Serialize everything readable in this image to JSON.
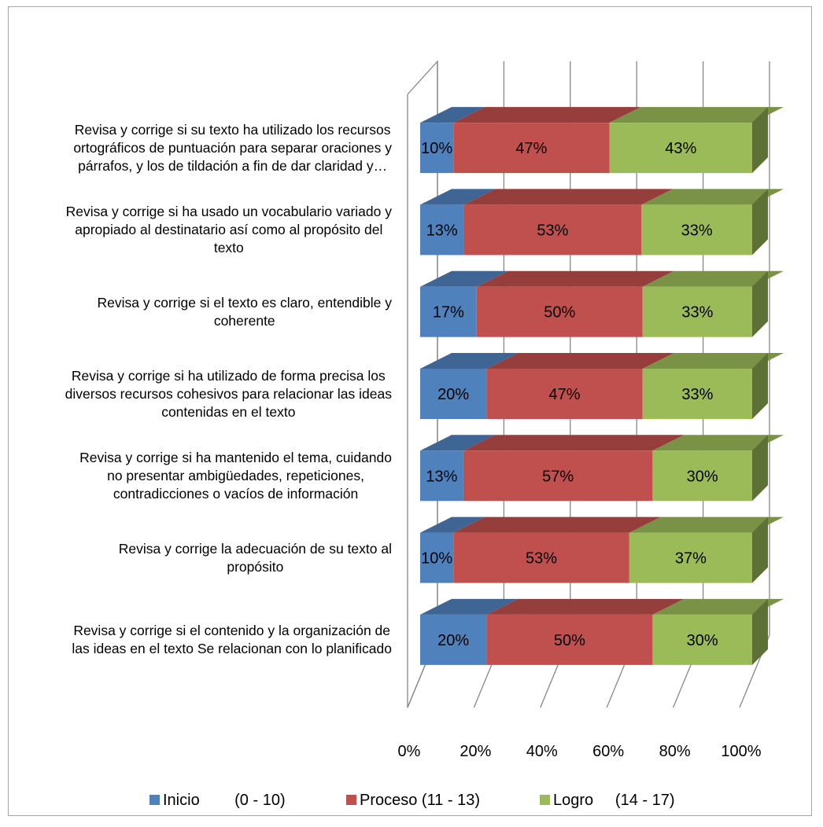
{
  "chart_data": {
    "type": "bar",
    "orientation": "horizontal",
    "stacked": "100%",
    "three_d": true,
    "categories": [
      "Revisa y corrige si su texto ha utilizado los recursos ortográficos de puntuación para separar oraciones y párrafos, y los de tildación a fin de dar claridad y…",
      "Revisa y corrige si ha usado un vocabulario variado y apropiado al destinatario así como al propósito del texto",
      "Revisa y corrige si el texto es claro, entendible y coherente",
      "Revisa y corrige si ha utilizado de forma precisa los diversos recursos cohesivos para relacionar las ideas contenidas en el texto",
      "Revisa y corrige si ha mantenido el tema, cuidando no presentar ambigüedades, repeticiones, contradicciones o vacíos de información",
      "Revisa y corrige la adecuación de su texto al propósito",
      "Revisa y corrige si el contenido y la organización de las ideas en el texto Se relacionan con lo planificado"
    ],
    "category_lines": [
      [
        "Revisa y corrige si su texto ha utilizado los recursos",
        "ortográficos de puntuación para separar oraciones y",
        "párrafos, y los de tildación a fin de dar claridad y…"
      ],
      [
        "Revisa y corrige si ha usado un vocabulario variado y",
        "apropiado al destinatario así como al propósito del",
        "texto"
      ],
      [
        "Revisa y corrige si el texto es claro, entendible y",
        "coherente"
      ],
      [
        "Revisa y corrige si ha utilizado de forma precisa los",
        "diversos recursos cohesivos para relacionar las ideas",
        "contenidas en el texto"
      ],
      [
        "Revisa y corrige si ha mantenido el tema, cuidando",
        "no presentar ambigüedades, repeticiones,",
        "contradicciones o vacíos de información"
      ],
      [
        "Revisa y corrige la adecuación de su texto al",
        "propósito"
      ],
      [
        "Revisa y corrige si el contenido y la organización de",
        "las ideas en el texto Se relacionan con lo planificado"
      ]
    ],
    "series": [
      {
        "name": "Inicio        (0 - 10)",
        "color": "#4f81bd",
        "values": [
          10,
          13,
          17,
          20,
          13,
          10,
          20
        ]
      },
      {
        "name": "Proceso (11 - 13)",
        "color": "#c0504d",
        "values": [
          47,
          53,
          50,
          47,
          57,
          53,
          50
        ]
      },
      {
        "name": "Logro     (14 - 17)",
        "color": "#9bbb59",
        "values": [
          43,
          33,
          33,
          33,
          30,
          37,
          30
        ]
      }
    ],
    "data_labels": [
      [
        "10%",
        "47%",
        "43%"
      ],
      [
        "13%",
        "53%",
        "33%"
      ],
      [
        "17%",
        "50%",
        "33%"
      ],
      [
        "20%",
        "47%",
        "33%"
      ],
      [
        "13%",
        "57%",
        "30%"
      ],
      [
        "10%",
        "53%",
        "37%"
      ],
      [
        "20%",
        "50%",
        "30%"
      ]
    ],
    "x_ticks": [
      "0%",
      "20%",
      "40%",
      "60%",
      "80%",
      "100%"
    ],
    "xlim": [
      0,
      100
    ],
    "grid": true,
    "legend_position": "bottom"
  }
}
